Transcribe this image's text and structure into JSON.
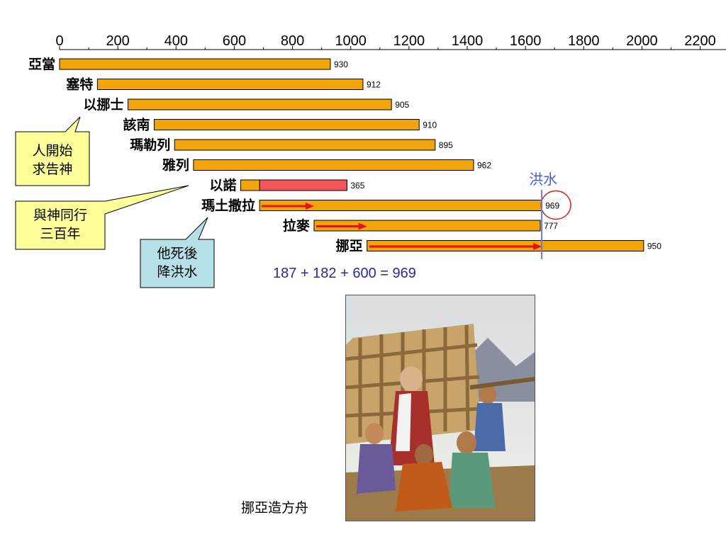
{
  "chart_data": {
    "type": "bar",
    "orientation": "horizontal",
    "x_ticks": [
      0,
      200,
      400,
      600,
      800,
      1000,
      1200,
      1400,
      1600,
      1800,
      2000,
      2200
    ],
    "xlim": [
      0,
      2250
    ],
    "axis_position": "top",
    "grid": false,
    "legend": "none",
    "bars": [
      {
        "label": "亞當",
        "start": 0,
        "value": 930,
        "value_label": "930"
      },
      {
        "label": "塞特",
        "start": 130,
        "value": 912,
        "value_label": "912"
      },
      {
        "label": "以挪士",
        "start": 235,
        "value": 905,
        "value_label": "905"
      },
      {
        "label": "該南",
        "start": 325,
        "value": 910,
        "value_label": "910"
      },
      {
        "label": "瑪勒列",
        "start": 395,
        "value": 895,
        "value_label": "895"
      },
      {
        "label": "雅列",
        "start": 460,
        "value": 962,
        "value_label": "962"
      },
      {
        "label": "以諾",
        "start": 622,
        "value": 365,
        "value_label": "365",
        "highlight_from": 687,
        "highlight_color": "#f4555a"
      },
      {
        "label": "瑪土撒拉",
        "start": 687,
        "value": 969,
        "value_label": "969",
        "arrow_length": 187,
        "value_circled": true
      },
      {
        "label": "拉麥",
        "start": 874,
        "value": 777,
        "value_label": "777",
        "arrow_length": 182
      },
      {
        "label": "挪亞",
        "start": 1056,
        "value": 950,
        "value_label": "950",
        "arrow_length": 600
      }
    ],
    "flood_year": 1656,
    "flood_label": "洪水",
    "bar_color": "#f2a50a",
    "arrow_color": "#e8101a",
    "flood_line_color": "#6b7bd8"
  },
  "callouts": {
    "enosh": {
      "lines": [
        "人開始",
        "求告神"
      ],
      "color": "#ffff99"
    },
    "enoch": {
      "lines": [
        "與神同行",
        "三百年"
      ],
      "color": "#ffff99"
    },
    "methuselah": {
      "lines": [
        "他死後",
        "降洪水"
      ],
      "color": "#b6e0e8"
    }
  },
  "equation": "187 +  182 +  600 = 969",
  "caption": "挪亞造方舟"
}
